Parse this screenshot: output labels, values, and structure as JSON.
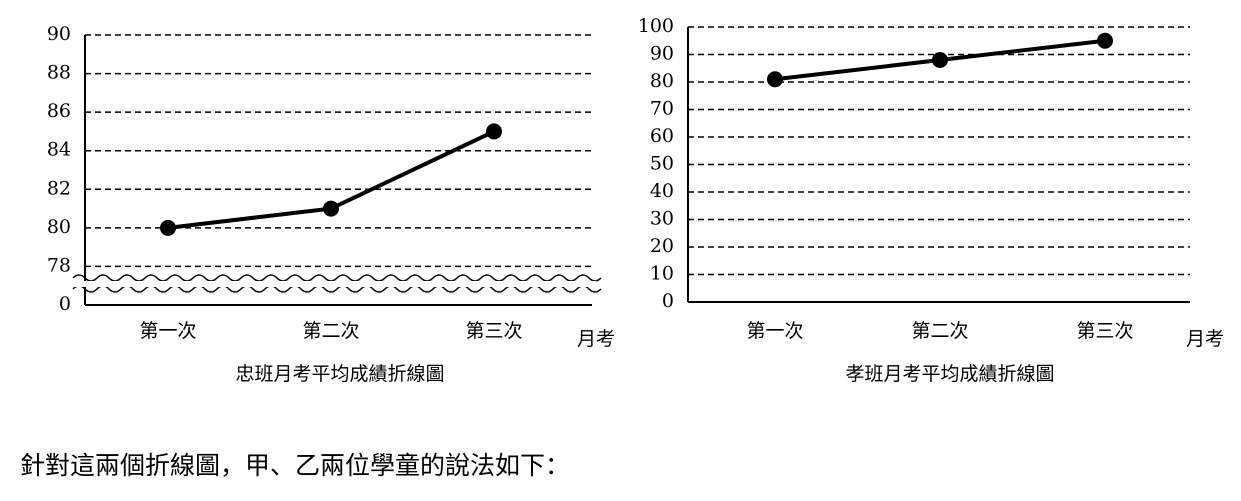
{
  "chart_data": [
    {
      "type": "line",
      "title": "忠班月考平均成績折線圖",
      "x_label": "月考",
      "categories": [
        "第一次",
        "第二次",
        "第三次"
      ],
      "values": [
        80,
        81,
        85
      ],
      "color": "#000000",
      "ylim": [
        76,
        90
      ],
      "yticks": [
        0,
        78,
        80,
        82,
        84,
        86,
        88,
        90
      ],
      "axis_break": true,
      "grid": true
    },
    {
      "type": "line",
      "title": "孝班月考平均成績折線圖",
      "x_label": "月考",
      "categories": [
        "第一次",
        "第二次",
        "第三次"
      ],
      "values": [
        81,
        88,
        95
      ],
      "color": "#000000",
      "ylim": [
        0,
        100
      ],
      "yticks": [
        0,
        10,
        20,
        30,
        40,
        50,
        60,
        70,
        80,
        90,
        100
      ],
      "axis_break": false,
      "grid": true
    }
  ],
  "caption": "針對這兩個折線圖，甲、乙兩位學童的說法如下："
}
